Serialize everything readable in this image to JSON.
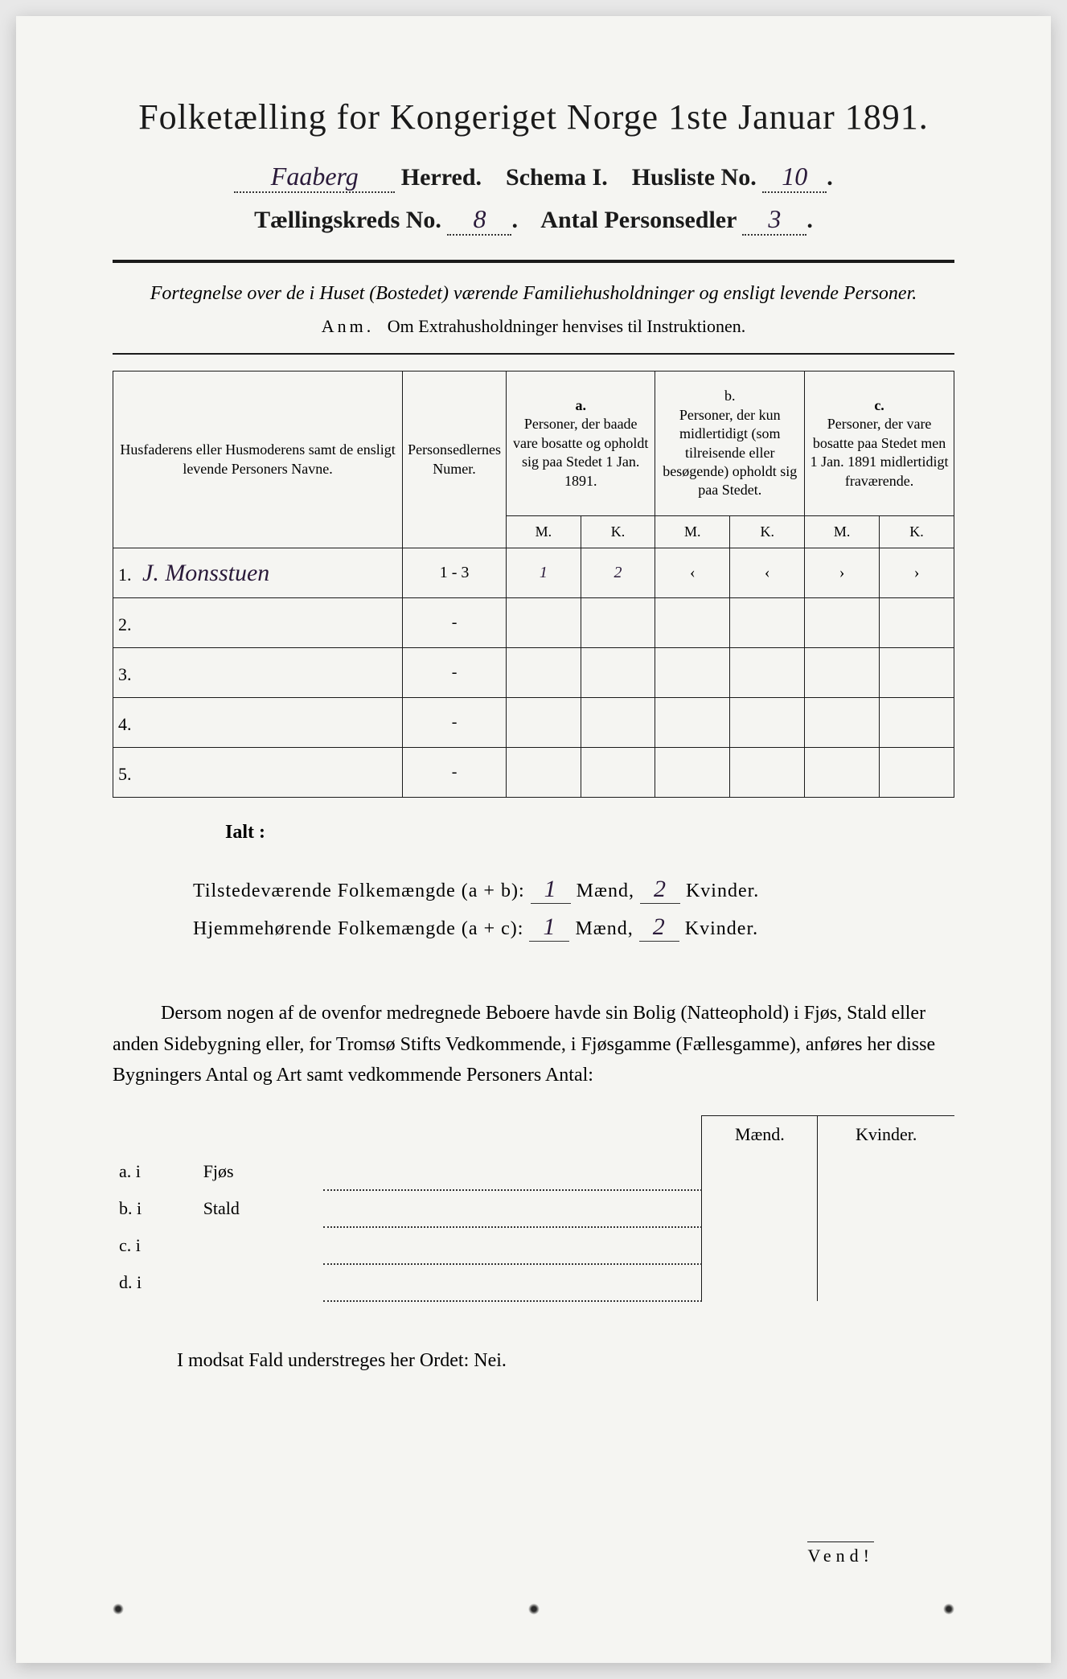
{
  "title": "Folketælling for Kongeriget Norge 1ste Januar 1891.",
  "header": {
    "herred_value": "Faaberg",
    "herred_label": "Herred.",
    "schema_label": "Schema I.",
    "husliste_label": "Husliste No.",
    "husliste_value": "10",
    "kreds_label": "Tællingskreds No.",
    "kreds_value": "8",
    "sedler_label": "Antal Personsedler",
    "sedler_value": "3"
  },
  "subtitle": "Fortegnelse over de i Huset (Bostedet) værende Familiehusholdninger og ensligt levende Personer.",
  "anm_label": "Anm.",
  "anm_text": "Om Extrahusholdninger henvises til Instruktionen.",
  "table": {
    "col1": "Husfaderens eller Husmoderens samt de ensligt levende Personers Navne.",
    "col2": "Personsedlernes Numer.",
    "col_a_label": "a.",
    "col_a_text": "Personer, der baade vare bosatte og opholdt sig paa Stedet 1 Jan. 1891.",
    "col_b_label": "b.",
    "col_b_text": "Personer, der kun midlertidigt (som tilreisende eller besøgende) opholdt sig paa Stedet.",
    "col_c_label": "c.",
    "col_c_text": "Personer, der vare bosatte paa Stedet men 1 Jan. 1891 midlertidigt fraværende.",
    "m_label": "M.",
    "k_label": "K.",
    "rows": [
      {
        "num": "1.",
        "name": "J. Monsstuen",
        "sedler": "1 - 3",
        "a_m": "1",
        "a_k": "2",
        "b_m": "‹",
        "b_k": "‹",
        "c_m": "›",
        "c_k": "›"
      },
      {
        "num": "2.",
        "name": "",
        "sedler": "-",
        "a_m": "",
        "a_k": "",
        "b_m": "",
        "b_k": "",
        "c_m": "",
        "c_k": ""
      },
      {
        "num": "3.",
        "name": "",
        "sedler": "-",
        "a_m": "",
        "a_k": "",
        "b_m": "",
        "b_k": "",
        "c_m": "",
        "c_k": ""
      },
      {
        "num": "4.",
        "name": "",
        "sedler": "-",
        "a_m": "",
        "a_k": "",
        "b_m": "",
        "b_k": "",
        "c_m": "",
        "c_k": ""
      },
      {
        "num": "5.",
        "name": "",
        "sedler": "-",
        "a_m": "",
        "a_k": "",
        "b_m": "",
        "b_k": "",
        "c_m": "",
        "c_k": ""
      }
    ]
  },
  "ialt": "Ialt :",
  "summary": {
    "line1_label": "Tilstedeværende Folkemængde (a + b):",
    "line1_m": "1",
    "line1_k": "2",
    "line2_label": "Hjemmehørende Folkemængde (a + c):",
    "line2_m": "1",
    "line2_k": "2",
    "maend": "Mænd,",
    "kvinder": "Kvinder."
  },
  "body_text": "Dersom nogen af de ovenfor medregnede Beboere havde sin Bolig (Natteophold) i Fjøs, Stald eller anden Sidebygning eller, for Tromsø Stifts Vedkommende, i Fjøsgamme (Fællesgamme), anføres her disse Bygningers Antal og Art samt vedkommende Personers Antal:",
  "sidebyg": {
    "maend": "Mænd.",
    "kvinder": "Kvinder.",
    "rows": [
      {
        "label": "a. i",
        "type": "Fjøs"
      },
      {
        "label": "b. i",
        "type": "Stald"
      },
      {
        "label": "c. i",
        "type": ""
      },
      {
        "label": "d. i",
        "type": ""
      }
    ]
  },
  "modsat": "I modsat Fald understreges her Ordet: Nei.",
  "vend": "Vend!"
}
